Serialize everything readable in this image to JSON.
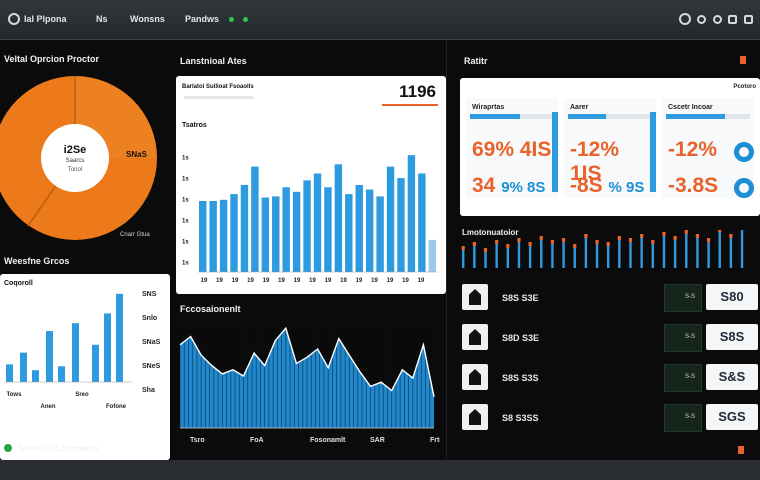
{
  "app": {
    "brand": "Ial Plpona",
    "nav": [
      "Ns",
      "Wonsns",
      "Pandws"
    ],
    "bottom_title": "Wsioe Inl Locomento"
  },
  "panels": {
    "donut": {
      "title": "Veltal Oprcion Proctor",
      "center_value": "i2Se",
      "center_label": "Saarcs",
      "center_sub": "Tonol",
      "side_label": "SNaS",
      "footer": "Cnarr Gtua"
    },
    "main_bar": {
      "title": "Lanstnioal Ates",
      "header_label": "Barlatoi Suilioat Fsoaolls",
      "header_value": "1196",
      "subtitle": "Tsatros",
      "y_ticks": [
        "1s",
        "1s",
        "1s",
        "1s",
        "1s",
        "1s"
      ],
      "x_ticks": [
        "19",
        "19",
        "19",
        "19",
        "19",
        "19",
        "19",
        "19",
        "19",
        "19",
        "19",
        "19",
        "19",
        "19",
        "19"
      ],
      "bar_color": "#2e9be0",
      "values": [
        62,
        62,
        63,
        68,
        76,
        92,
        65,
        66,
        74,
        70,
        80,
        86,
        74,
        94,
        68,
        76,
        72,
        66,
        92,
        82,
        102,
        86,
        28
      ]
    },
    "small_bar": {
      "title": "Weesfne Grcos",
      "header_label": "Coqoroll",
      "y_ticks": [
        "SNS",
        "Snlo",
        "SNaS",
        "SNeS",
        "Sha"
      ],
      "x_labels": [
        "Tows",
        "Anen",
        "Sreo",
        "Fofone"
      ],
      "values": [
        18,
        30,
        12,
        52,
        16,
        60,
        38,
        70,
        90
      ]
    },
    "area": {
      "title": "Fccosaionenlt",
      "x_labels": [
        "Tsro",
        "FoA",
        "Fosonamlt",
        "SAR",
        "Frtos"
      ],
      "values": [
        80,
        88,
        70,
        60,
        52,
        56,
        50,
        72,
        60,
        84,
        96,
        62,
        68,
        76,
        58,
        86,
        70,
        54,
        40,
        44,
        36,
        56,
        48,
        80,
        30
      ]
    },
    "kpi": {
      "title": "Ratitr",
      "cards": [
        {
          "label": "Wiraprtas",
          "v1": "69% 4IS",
          "v2": "34",
          "v2b": "9% 8S",
          "fill": 0.6
        },
        {
          "label": "Aarer",
          "v1": "-12% 1IS",
          "v2": "-8S",
          "v2b": "% 9S",
          "fill": 0.45
        },
        {
          "label": "Cscetr Incoar",
          "v1": "-12%",
          "v2": "-3.8S",
          "v2b": "",
          "fill": 0.7
        }
      ],
      "badge": "Pcotoro"
    },
    "spark": {
      "title": "Lmotonuatoior",
      "values": [
        18,
        22,
        16,
        24,
        20,
        26,
        22,
        28,
        24,
        26,
        20,
        30,
        24,
        22,
        28,
        26,
        30,
        24,
        32,
        28,
        34,
        30,
        26,
        36,
        30,
        38
      ]
    },
    "rows": [
      {
        "label": "S8S S3E",
        "mid": "S-S",
        "value": "S80"
      },
      {
        "label": "S8D S3E",
        "mid": "S-S",
        "value": "S8S"
      },
      {
        "label": "S8S S3S",
        "mid": "S-S",
        "value": "S&S"
      },
      {
        "label": "S8 S3SS",
        "mid": "S-S",
        "value": "SGS"
      }
    ]
  }
}
